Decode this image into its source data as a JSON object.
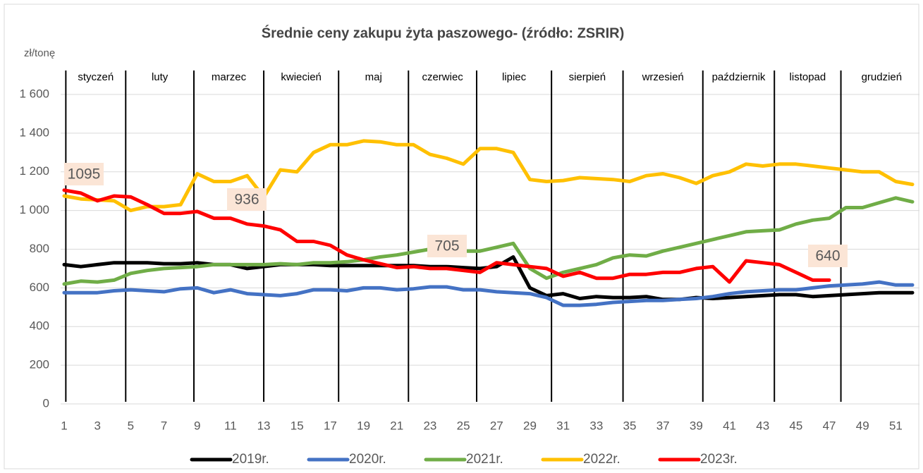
{
  "chart_data": {
    "type": "line",
    "title": "Średnie ceny zakupu żyta paszowego- (źródło: ZSRIR)",
    "y_label": "zł/tonę",
    "months": [
      "styczeń",
      "luty",
      "marzec",
      "kwiecień",
      "maj",
      "czerwiec",
      "lipiec",
      "sierpień",
      "wrzesień",
      "październik",
      "listopad",
      "grudzień"
    ],
    "annotations": [
      "1095",
      "936",
      "705",
      "640"
    ],
    "x": [
      1,
      2,
      3,
      4,
      5,
      6,
      7,
      8,
      9,
      10,
      11,
      12,
      13,
      14,
      15,
      16,
      17,
      18,
      19,
      20,
      21,
      22,
      23,
      24,
      25,
      26,
      27,
      28,
      29,
      30,
      31,
      32,
      33,
      34,
      35,
      36,
      37,
      38,
      39,
      40,
      41,
      42,
      43,
      44,
      45,
      46,
      47,
      48,
      49,
      50,
      51,
      52
    ],
    "xlim": [
      1,
      52
    ],
    "xticks": [
      1,
      3,
      5,
      7,
      9,
      11,
      13,
      15,
      17,
      19,
      21,
      23,
      25,
      27,
      29,
      31,
      33,
      35,
      37,
      39,
      41,
      43,
      45,
      47,
      49,
      51
    ],
    "ylim": [
      0,
      1600
    ],
    "yticks": [
      0,
      200,
      400,
      600,
      800,
      {
        "value": 1000,
        "label": "1 000"
      },
      {
        "value": 1200,
        "label": "1 200"
      },
      {
        "value": 1400,
        "label": "1 400"
      },
      {
        "value": 1600,
        "label": "1 600"
      }
    ],
    "grid": true,
    "legend": "bottom",
    "series": [
      {
        "name": "2019r.",
        "color": "#000000",
        "values": [
          720,
          710,
          720,
          730,
          730,
          730,
          725,
          725,
          730,
          720,
          720,
          700,
          710,
          720,
          720,
          720,
          715,
          715,
          715,
          715,
          715,
          715,
          710,
          710,
          705,
          700,
          710,
          760,
          600,
          560,
          570,
          545,
          555,
          550,
          550,
          555,
          540,
          540,
          550,
          545,
          550,
          555,
          560,
          565,
          565,
          555,
          560,
          565,
          570,
          575,
          575,
          575
        ]
      },
      {
        "name": "2020r.",
        "color": "#4472c4",
        "values": [
          575,
          575,
          575,
          585,
          590,
          585,
          580,
          595,
          600,
          575,
          590,
          570,
          565,
          560,
          570,
          590,
          590,
          585,
          600,
          600,
          590,
          595,
          605,
          605,
          590,
          590,
          580,
          575,
          570,
          550,
          510,
          510,
          515,
          525,
          530,
          535,
          535,
          540,
          545,
          555,
          570,
          580,
          585,
          590,
          590,
          600,
          610,
          615,
          620,
          630,
          615,
          615
        ]
      },
      {
        "name": "2021r.",
        "color": "#70ad47",
        "values": [
          620,
          635,
          630,
          640,
          675,
          690,
          700,
          705,
          710,
          720,
          720,
          720,
          720,
          725,
          720,
          730,
          730,
          735,
          745,
          760,
          770,
          785,
          800,
          810,
          790,
          790,
          810,
          830,
          700,
          650,
          680,
          700,
          720,
          755,
          770,
          765,
          790,
          810,
          830,
          850,
          870,
          890,
          895,
          900,
          930,
          950,
          960,
          1015,
          1015,
          1040,
          1065,
          1045
        ]
      },
      {
        "name": "2022r.",
        "color": "#ffc000",
        "values": [
          1075,
          1060,
          1055,
          1050,
          1000,
          1020,
          1020,
          1030,
          1190,
          1150,
          1150,
          1180,
          1070,
          1210,
          1200,
          1300,
          1340,
          1340,
          1360,
          1355,
          1340,
          1340,
          1290,
          1270,
          1240,
          1320,
          1320,
          1300,
          1160,
          1150,
          1155,
          1170,
          1165,
          1160,
          1150,
          1180,
          1190,
          1170,
          1140,
          1180,
          1200,
          1240,
          1230,
          1240,
          1240,
          1230,
          1220,
          1210,
          1200,
          1200,
          1150,
          1135
        ]
      },
      {
        "name": "2023r.",
        "color": "#ff0000",
        "values": [
          1105,
          1090,
          1050,
          1075,
          1070,
          1030,
          985,
          985,
          995,
          960,
          960,
          930,
          920,
          900,
          840,
          840,
          820,
          770,
          745,
          725,
          705,
          710,
          700,
          700,
          690,
          680,
          730,
          720,
          710,
          700,
          660,
          680,
          650,
          650,
          670,
          670,
          680,
          680,
          700,
          710,
          630,
          740,
          730,
          720,
          680,
          640,
          640,
          null,
          null,
          null,
          null,
          null
        ]
      }
    ]
  }
}
